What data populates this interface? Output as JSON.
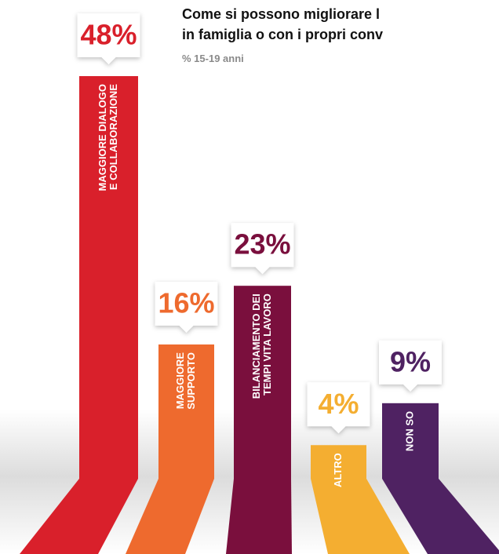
{
  "chart_data": {
    "type": "bar",
    "title": [
      "Come si possono migliorare l",
      "in famiglia o con i propri conv"
    ],
    "subtitle": "% 15-19 anni",
    "categories": [
      [
        "MAGGIORE DIALOGO",
        "E COLLABORAZIONE"
      ],
      [
        "MAGGIORE",
        "SUPPORTO"
      ],
      [
        "BILANCIAMENTO DEI",
        "TEMPI VITA LAVORO"
      ],
      [
        "ALTRO"
      ],
      [
        "NON SO"
      ]
    ],
    "values": [
      48,
      16,
      23,
      4,
      9
    ],
    "value_labels": [
      "48%",
      "16%",
      "23%",
      "4%",
      "9%"
    ],
    "colors": [
      "#d9202b",
      "#ee6a2e",
      "#7a0f3d",
      "#f4ae31",
      "#4f2262"
    ],
    "ylim": [
      0,
      48
    ]
  }
}
